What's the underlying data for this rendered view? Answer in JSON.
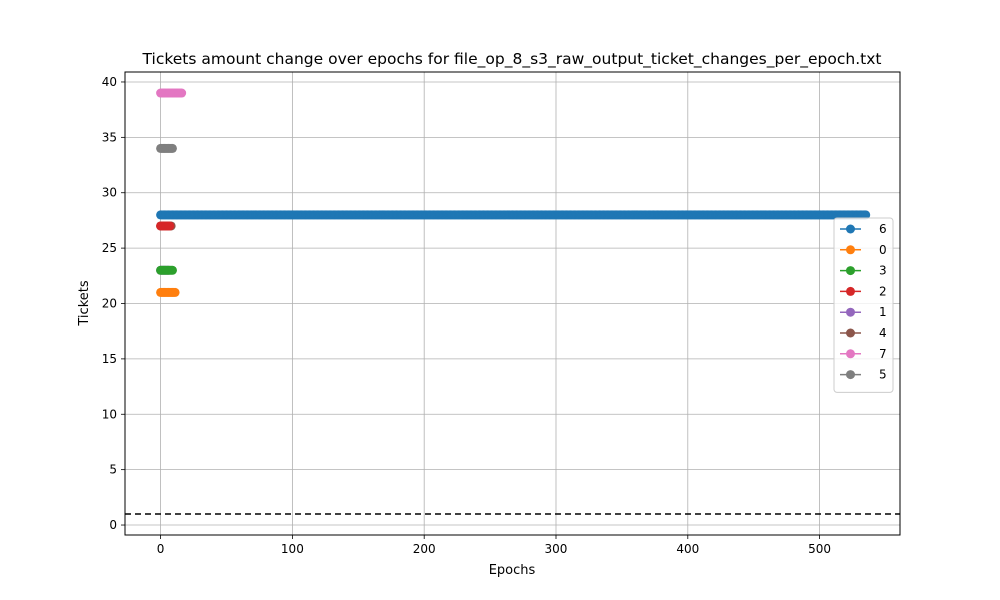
{
  "chart_data": {
    "type": "line",
    "title": "Tickets amount change over epochs for file_op_8_s3_raw_output_ticket_changes_per_epoch.txt",
    "xlabel": "Epochs",
    "ylabel": "Tickets",
    "xlim": [
      -27,
      561
    ],
    "ylim": [
      -0.9,
      40.9
    ],
    "xticks": [
      0,
      100,
      200,
      300,
      400,
      500
    ],
    "yticks": [
      0,
      5,
      10,
      15,
      20,
      25,
      30,
      35,
      40
    ],
    "grid": true,
    "legend_position": "center-right",
    "reference_line": {
      "y": 1,
      "style": "dashed",
      "color": "#000000"
    },
    "series": [
      {
        "name": "6",
        "color": "#1f77b4",
        "x_start": 0,
        "x_end": 535,
        "value": 28
      },
      {
        "name": "0",
        "color": "#ff7f0e",
        "x_start": 0,
        "x_end": 11,
        "value": 21
      },
      {
        "name": "3",
        "color": "#2ca02c",
        "x_start": 0,
        "x_end": 9,
        "value": 23
      },
      {
        "name": "2",
        "color": "#d62728",
        "x_start": 0,
        "x_end": 7,
        "value": 27
      },
      {
        "name": "1",
        "color": "#9467bd",
        "x_start": 0,
        "x_end": 6,
        "value": 23
      },
      {
        "name": "4",
        "color": "#8c564b",
        "x_start": 0,
        "x_end": 8,
        "value": 27
      },
      {
        "name": "7",
        "color": "#e377c2",
        "x_start": 0,
        "x_end": 16,
        "value": 39
      },
      {
        "name": "5",
        "color": "#7f7f7f",
        "x_start": 0,
        "x_end": 9,
        "value": 34
      }
    ]
  }
}
